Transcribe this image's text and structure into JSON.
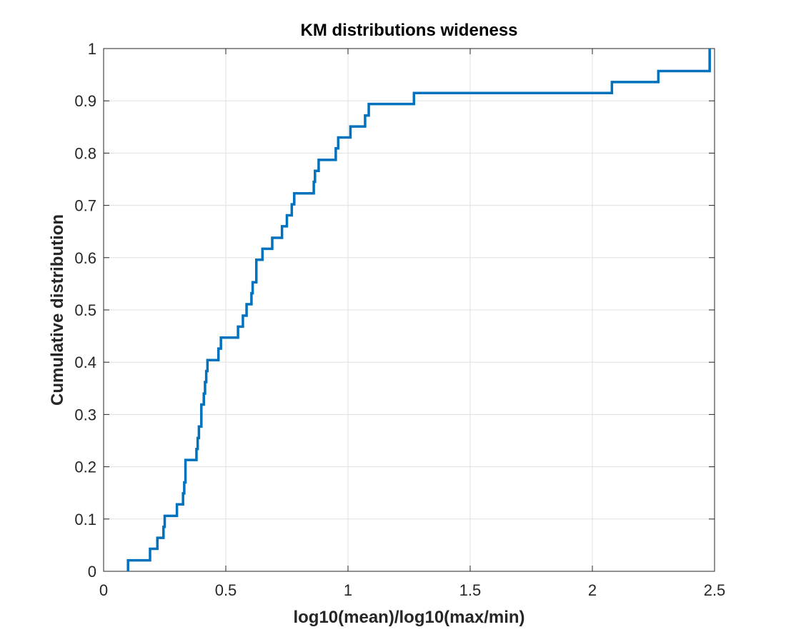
{
  "chart_data": {
    "type": "line",
    "title": "KM distributions wideness",
    "xlabel": "log10(mean)/log10(max/min)",
    "ylabel": "Cumulative distribution",
    "xlim": [
      0,
      2.5
    ],
    "ylim": [
      0,
      1
    ],
    "xticks": [
      "0",
      "0.5",
      "1",
      "1.5",
      "2",
      "2.5"
    ],
    "yticks": [
      "0",
      "0.1",
      "0.2",
      "0.3",
      "0.4",
      "0.5",
      "0.6",
      "0.7",
      "0.8",
      "0.9",
      "1"
    ],
    "grid": true,
    "step": true,
    "series_color": "#0072BD",
    "series": [
      {
        "x": [
          0.1,
          0.19,
          0.22,
          0.245,
          0.25,
          0.3,
          0.325,
          0.33,
          0.335,
          0.38,
          0.385,
          0.39,
          0.4,
          0.41,
          0.415,
          0.42,
          0.425,
          0.47,
          0.48,
          0.55,
          0.57,
          0.585,
          0.605,
          0.61,
          0.625,
          0.65,
          0.69,
          0.73,
          0.75,
          0.77,
          0.78,
          0.86,
          0.865,
          0.88,
          0.95,
          0.96,
          1.01,
          1.07,
          1.085,
          1.27,
          2.08,
          2.27,
          2.48
        ],
        "y": [
          0.021,
          0.043,
          0.064,
          0.085,
          0.106,
          0.128,
          0.149,
          0.17,
          0.213,
          0.234,
          0.255,
          0.277,
          0.319,
          0.34,
          0.362,
          0.383,
          0.404,
          0.426,
          0.447,
          0.468,
          0.489,
          0.511,
          0.532,
          0.553,
          0.596,
          0.617,
          0.638,
          0.66,
          0.681,
          0.702,
          0.723,
          0.745,
          0.766,
          0.787,
          0.809,
          0.83,
          0.851,
          0.872,
          0.894,
          0.915,
          0.936,
          0.957,
          0.979
        ]
      }
    ],
    "last_y": 1.0
  }
}
